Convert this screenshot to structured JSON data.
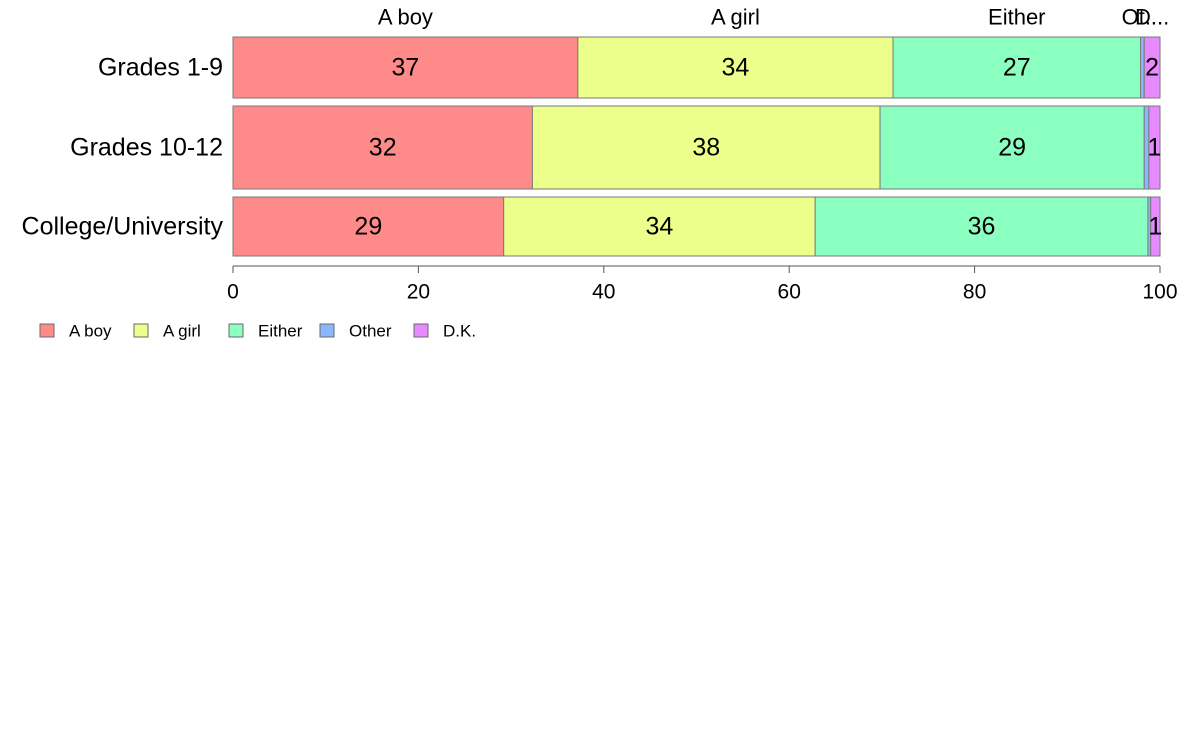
{
  "chart_data": {
    "type": "bar",
    "orientation": "horizontal",
    "stacked": true,
    "title": "",
    "xlabel": "",
    "ylabel": "",
    "xlim": [
      0,
      100
    ],
    "xticks": [
      0,
      20,
      40,
      60,
      80,
      100
    ],
    "categories": [
      "Grades 1-9",
      "Grades 10-12",
      "College/University"
    ],
    "top_labels": [
      "A boy",
      "A girl",
      "Either",
      "Ot...",
      "D..."
    ],
    "series": [
      {
        "name": "A boy",
        "color": "#ff8a8a",
        "values": [
          37.2,
          32.3,
          29.2
        ],
        "labels": [
          "37",
          "32",
          "29"
        ]
      },
      {
        "name": "A girl",
        "color": "#ebff8a",
        "values": [
          34.0,
          37.5,
          33.6
        ],
        "labels": [
          "34",
          "38",
          "34"
        ]
      },
      {
        "name": "Either",
        "color": "#8affc0",
        "values": [
          26.7,
          28.5,
          35.9
        ],
        "labels": [
          "27",
          "29",
          "36"
        ]
      },
      {
        "name": "Other",
        "color": "#8ab8ff",
        "values": [
          0.4,
          0.5,
          0.3
        ],
        "labels": [
          "",
          "",
          ""
        ]
      },
      {
        "name": "D.K.",
        "color": "#e88aff",
        "values": [
          1.7,
          1.2,
          1.0
        ],
        "labels": [
          "2",
          "1",
          "1"
        ]
      }
    ],
    "legend": {
      "position": "bottom-left",
      "items": [
        "A boy",
        "A girl",
        "Either",
        "Other",
        "D.K."
      ]
    },
    "grid": false
  }
}
